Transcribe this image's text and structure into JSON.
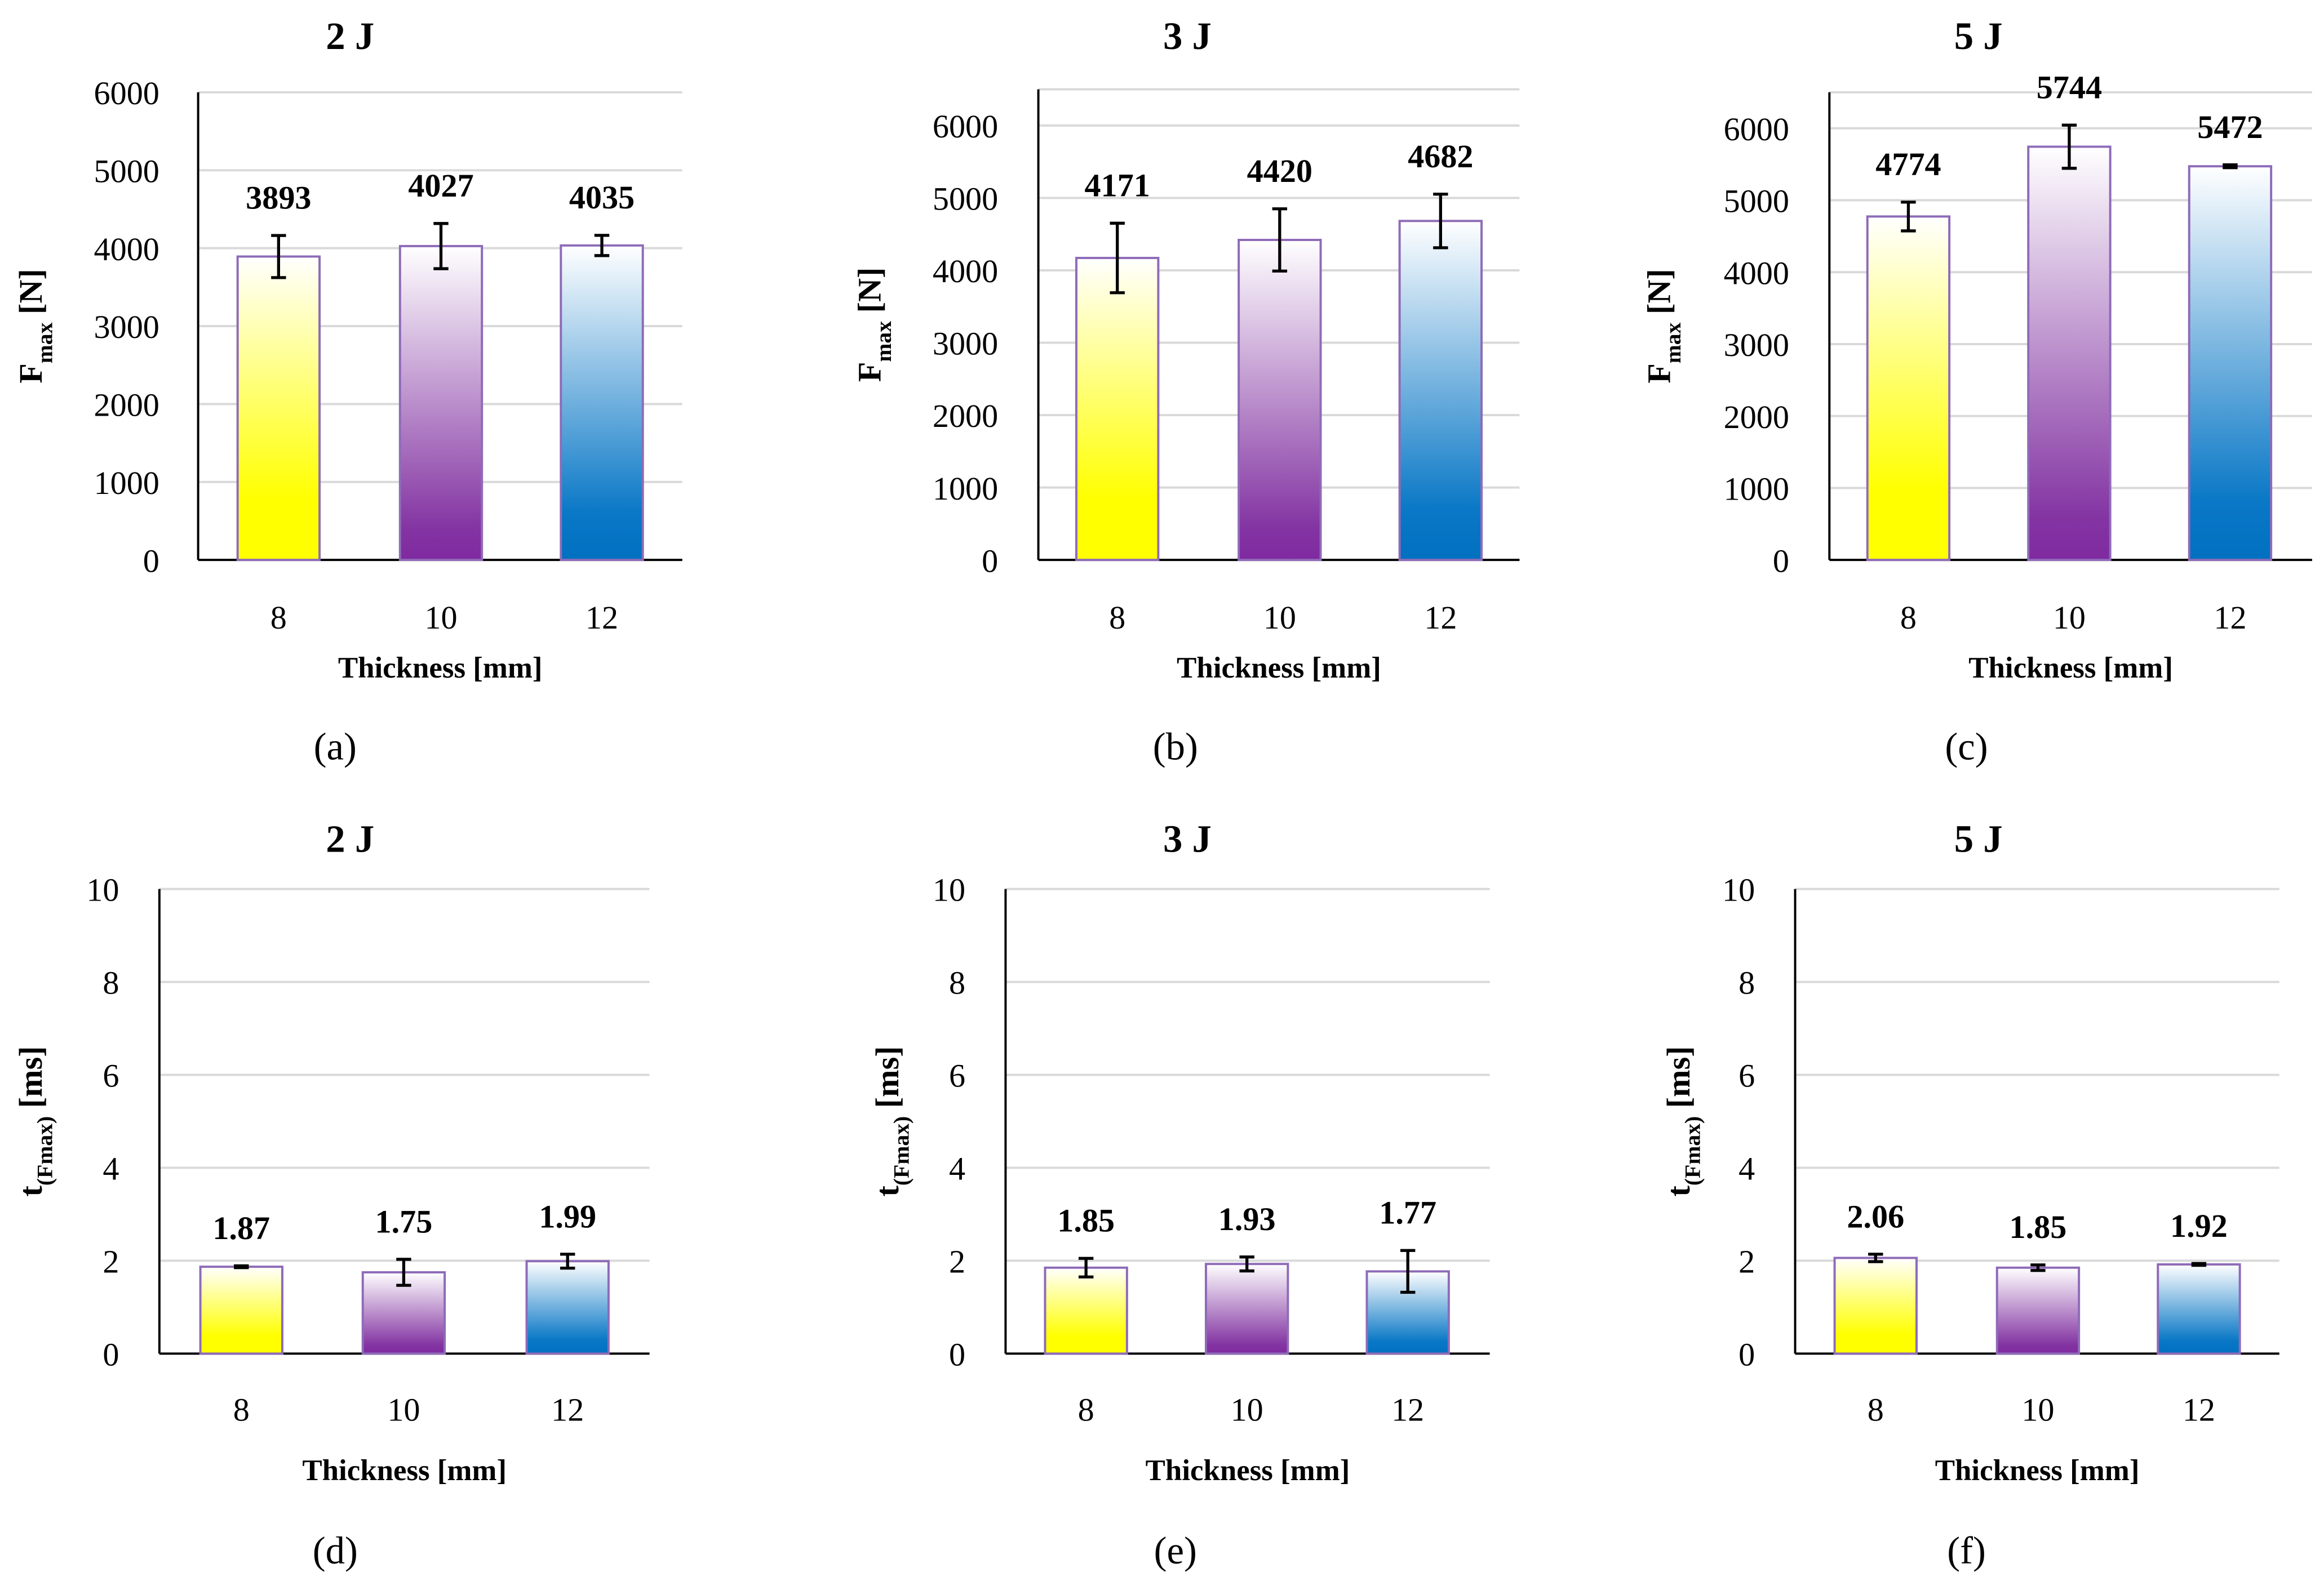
{
  "colors": {
    "bar_8": "#ffff00",
    "bar_10": "#7f2aa0",
    "bar_12": "#0070c0",
    "bar_border": "#8e6bb8",
    "grid": "#d9d9d9"
  },
  "chart_data": [
    {
      "type": "bar",
      "panel_label": "(a)",
      "title": "2 J",
      "ylabel": "F",
      "ylabel_sub": "max",
      "ylabel_unit": " [N]",
      "xlabel": "Thickness [mm]",
      "categories": [
        "8",
        "10",
        "12"
      ],
      "values": [
        3893,
        4027,
        4035
      ],
      "errors": [
        270,
        290,
        130
      ],
      "data_labels": [
        "3893",
        "4027",
        "4035"
      ],
      "ylim": [
        0,
        6000
      ],
      "yticks": [
        "0",
        "1000",
        "2000",
        "3000",
        "4000",
        "5000",
        "6000"
      ],
      "grid": true
    },
    {
      "type": "bar",
      "panel_label": "(b)",
      "title": "3 J",
      "ylabel": "F",
      "ylabel_sub": "max",
      "ylabel_unit": " [N]",
      "xlabel": "Thickness [mm]",
      "categories": [
        "8",
        "10",
        "12"
      ],
      "values": [
        4171,
        4420,
        4682
      ],
      "errors": [
        480,
        430,
        370
      ],
      "data_labels": [
        "4171",
        "4420",
        "4682"
      ],
      "ylim": [
        0,
        6500
      ],
      "yticks": [
        "0",
        "1000",
        "2000",
        "3000",
        "4000",
        "5000",
        "6000"
      ],
      "grid": true
    },
    {
      "type": "bar",
      "panel_label": "(c)",
      "title": "5 J",
      "ylabel": "F",
      "ylabel_sub": "max",
      "ylabel_unit": " [N]",
      "xlabel": "Thickness [mm]",
      "categories": [
        "8",
        "10",
        "12"
      ],
      "values": [
        4774,
        5744,
        5472
      ],
      "errors": [
        200,
        300,
        20
      ],
      "data_labels": [
        "4774",
        "5744",
        "5472"
      ],
      "ylim": [
        0,
        6500
      ],
      "yticks": [
        "0",
        "1000",
        "2000",
        "3000",
        "4000",
        "5000",
        "6000"
      ],
      "grid": true
    },
    {
      "type": "bar",
      "panel_label": "(d)",
      "title": "2 J",
      "ylabel": "t",
      "ylabel_sub": "(Fmax)",
      "ylabel_unit": " [ms]",
      "xlabel": "Thickness [mm]",
      "categories": [
        "8",
        "10",
        "12"
      ],
      "values": [
        1.87,
        1.75,
        1.99
      ],
      "errors": [
        0.02,
        0.28,
        0.15
      ],
      "data_labels": [
        "1.87",
        "1.75",
        "1.99"
      ],
      "ylim": [
        0,
        10
      ],
      "yticks": [
        "0",
        "2",
        "4",
        "6",
        "8",
        "10"
      ],
      "grid": true
    },
    {
      "type": "bar",
      "panel_label": "(e)",
      "title": "3 J",
      "ylabel": "t",
      "ylabel_sub": "(Fmax)",
      "ylabel_unit": " [ms]",
      "xlabel": "Thickness [mm]",
      "categories": [
        "8",
        "10",
        "12"
      ],
      "values": [
        1.85,
        1.93,
        1.77
      ],
      "errors": [
        0.2,
        0.15,
        0.45
      ],
      "data_labels": [
        "1.85",
        "1.93",
        "1.77"
      ],
      "ylim": [
        0,
        10
      ],
      "yticks": [
        "0",
        "2",
        "4",
        "6",
        "8",
        "10"
      ],
      "grid": true
    },
    {
      "type": "bar",
      "panel_label": "(f)",
      "title": "5 J",
      "ylabel": "t",
      "ylabel_sub": "(Fmax)",
      "ylabel_unit": " [ms]",
      "xlabel": "Thickness [mm]",
      "categories": [
        "8",
        "10",
        "12"
      ],
      "values": [
        2.06,
        1.85,
        1.92
      ],
      "errors": [
        0.08,
        0.06,
        0.02
      ],
      "data_labels": [
        "2.06",
        "1.85",
        "1.92"
      ],
      "ylim": [
        0,
        10
      ],
      "yticks": [
        "0",
        "2",
        "4",
        "6",
        "8",
        "10"
      ],
      "grid": true
    }
  ]
}
